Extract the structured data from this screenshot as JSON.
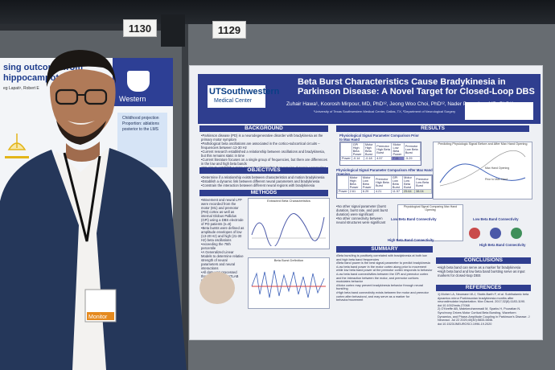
{
  "scene": {
    "board_numbers": [
      "1130",
      "1129"
    ],
    "neighbor_poster": {
      "title_lines": [
        "sing outcome from",
        "hippocampotomy",
        "eg Lapati¹, Robert E"
      ],
      "logo_text": "Western",
      "side_box_text": [
        "Childhood projection",
        "Proportion: ablations",
        "posterior to the LMS"
      ]
    },
    "poster": {
      "institution_main": "UTSouthwestern",
      "institution_sub": "Medical Center",
      "title_line1": "Beta Burst Characteristics Cause Bradykinesia in",
      "title_line2": "Parkinson Disease: A Novel Target for Closed-Loop DBS",
      "authors": "Zuhair Hawa¹, Koorosh Mirpour, MD, PhD¹², Jeong Woo Choi, PhD¹², Nader Pouratian, MD, PhD¹²",
      "affiliation": "¹University of Texas Southwestern Medical Center, Dallas, TX, ²Department of Neurological Surgery",
      "sections": {
        "background": "BACKGROUND",
        "objectives": "OBJECTIVES",
        "methods": "METHODS",
        "results": "RESULTS",
        "summary": "SUMMARY",
        "conclusions": "CONCLUSIONS",
        "references": "REFERENCES"
      },
      "background_bullets": [
        "•Parkinson disease (PD) is a neurodegenerative disorder with bradykinesia as the primary motor symptom",
        "•Pathological beta oscillations are associated in the cortico-subcortical circuits – frequencies between 13-30 Hz",
        "•Current research established a relationship between oscillations and bradykinesia,",
        "but this remains static in time",
        "•Current literature focuses on a single group of frequencies, but there are differences",
        "in the low and high beta bands",
        "•We aim to establish a more accurate relationship that remains dynamic across time",
        "to better understand burst events and PD movement dynamics"
      ],
      "objective_bullets": [
        "•Determine if a relationship exists between characteristics and motion bradykinesia",
        "•Establish a dynamic link between different neural parameters and bradykinesia",
        "•Constrain the interaction between different neural regions with bradykinesia"
      ],
      "methods_bullets": [
        "•Movement and neural LFP were recorded from the motor (M1) and premotor (PM) cortex as well as internal Globus Pallidus (GPi) using a DBS electrode of PD patients (n=8)",
        "•Beta bursts were defined as amplitude envelopes of low (13-20 Hz) and high (21-30 Hz) beta oscillations",
        "•exceeding the 75th percentile",
        "•A Generalized Linear Models to determine relative strength of neural parameters and neural interactions",
        "•All data was processed through custom MATLAB scripts"
      ],
      "methods_plot1_title": "Extracted Beta Characteristics",
      "methods_plot2_title": "Beta Burst Definition",
      "results_table1_title": "Physiological Signal Parameter Comparison Prior to Max Hand",
      "results_table1_header": [
        "",
        "GPi High Beta Power",
        "Motor High Beta Burst",
        "Premotor High Beta Burst",
        "Motor Low Beta Power",
        "Premotor Low Beta Burst"
      ],
      "results_table1_row": [
        "Power",
        "-0.14",
        "-0.18",
        "4.57",
        "7.11",
        "-5.29"
      ],
      "results_table2_title": "Physiological Signal Parameter Comparison After Max Hand Opening",
      "results_table2_header": [
        "",
        "Motor High Beta Power",
        "Motor Low Beta Power",
        "Premotor High Beta Burst",
        "GPi Low Beta Burst",
        "Motor Low Beta Burst",
        "Premotor Low Beta Burst"
      ],
      "results_table2_row": [
        "Power",
        "2.61",
        "6.29",
        "4.21",
        "11.57",
        "25.64",
        "38.04"
      ],
      "results_fig1_title": "Predicting Physiologic Signal Before and After Max Hand Opening",
      "results_fig1_labels": [
        "Max Hand Opening",
        "Prior to Max Hand"
      ],
      "results_fig2_title": "Physiological Signal Comparing Max Hand Opening",
      "results_fig3_title": "Low Beta Band Connectivity",
      "results_fig4_title": "Low Beta Band Connectivity",
      "results_fig5_title": "High Beta Band Connectivity",
      "results_fig6_title": "High Beta Band Connectivity",
      "results_notes": [
        "•No other signal parameter (burst duration, burst rate, and post burst duration) were significant",
        "•No other connectivity between neural structures were significant"
      ],
      "summary_bullets": [
        "•Beta burst/ing is positively correlated with bradykinesia at both low and high beta band frequencies",
        "•Beta band power is the best signal parameter to predict bradykinesia",
        "•Low beta band power in the motor cortex along prior to movement while low beta band power at the premotor cortex responds to behavior",
        "•Low beta band connectivities between the GPi and premotor cortex and the interaction between the motor, and premotor cortices modulates behavior",
        "•Motor cortex may prevent bradykinesia behavior through neural burst/ing",
        "•High beta band connectivity exists between the motor and premotor cortex after behavioral, and may serve as a marker for behavior/movement"
      ],
      "conclusions_bullets": [
        "•High beta band can serve as a marker for bradykinesia",
        "•High beta band and low beta band bursting serve as input markers for closed-loop DBS"
      ],
      "references": [
        "1) Moher LA, Neumann W-J, Stubb-Barth F, et al. Subthalamic beta dynamics mirror Parkinsonian bradykinesia months after neurostimulator implantation. Mov Disord. 2017;32(8):1183-1190. doi:10.1002/mds.27068",
        "2) O'Keeffe AB, Malekmohammadi M, Sparks H, Pouratian N. Synchrony Drives Motor Cortical Beta Bursting, Waveform Dynamics, and Phase-Amplitude Coupling in Parkinson's Disease. J Neurosci. Jul 22 2020;40(30):5833-5846. doi:10.1523/JNEUROSCI.1996-19.2020"
      ]
    },
    "person": {
      "badge_text": "Monitor"
    }
  },
  "colors": {
    "board": "#676c71",
    "poster_header": "#2f3e8f",
    "poster_background": "#eef0f4",
    "jacket": "#25375a"
  }
}
